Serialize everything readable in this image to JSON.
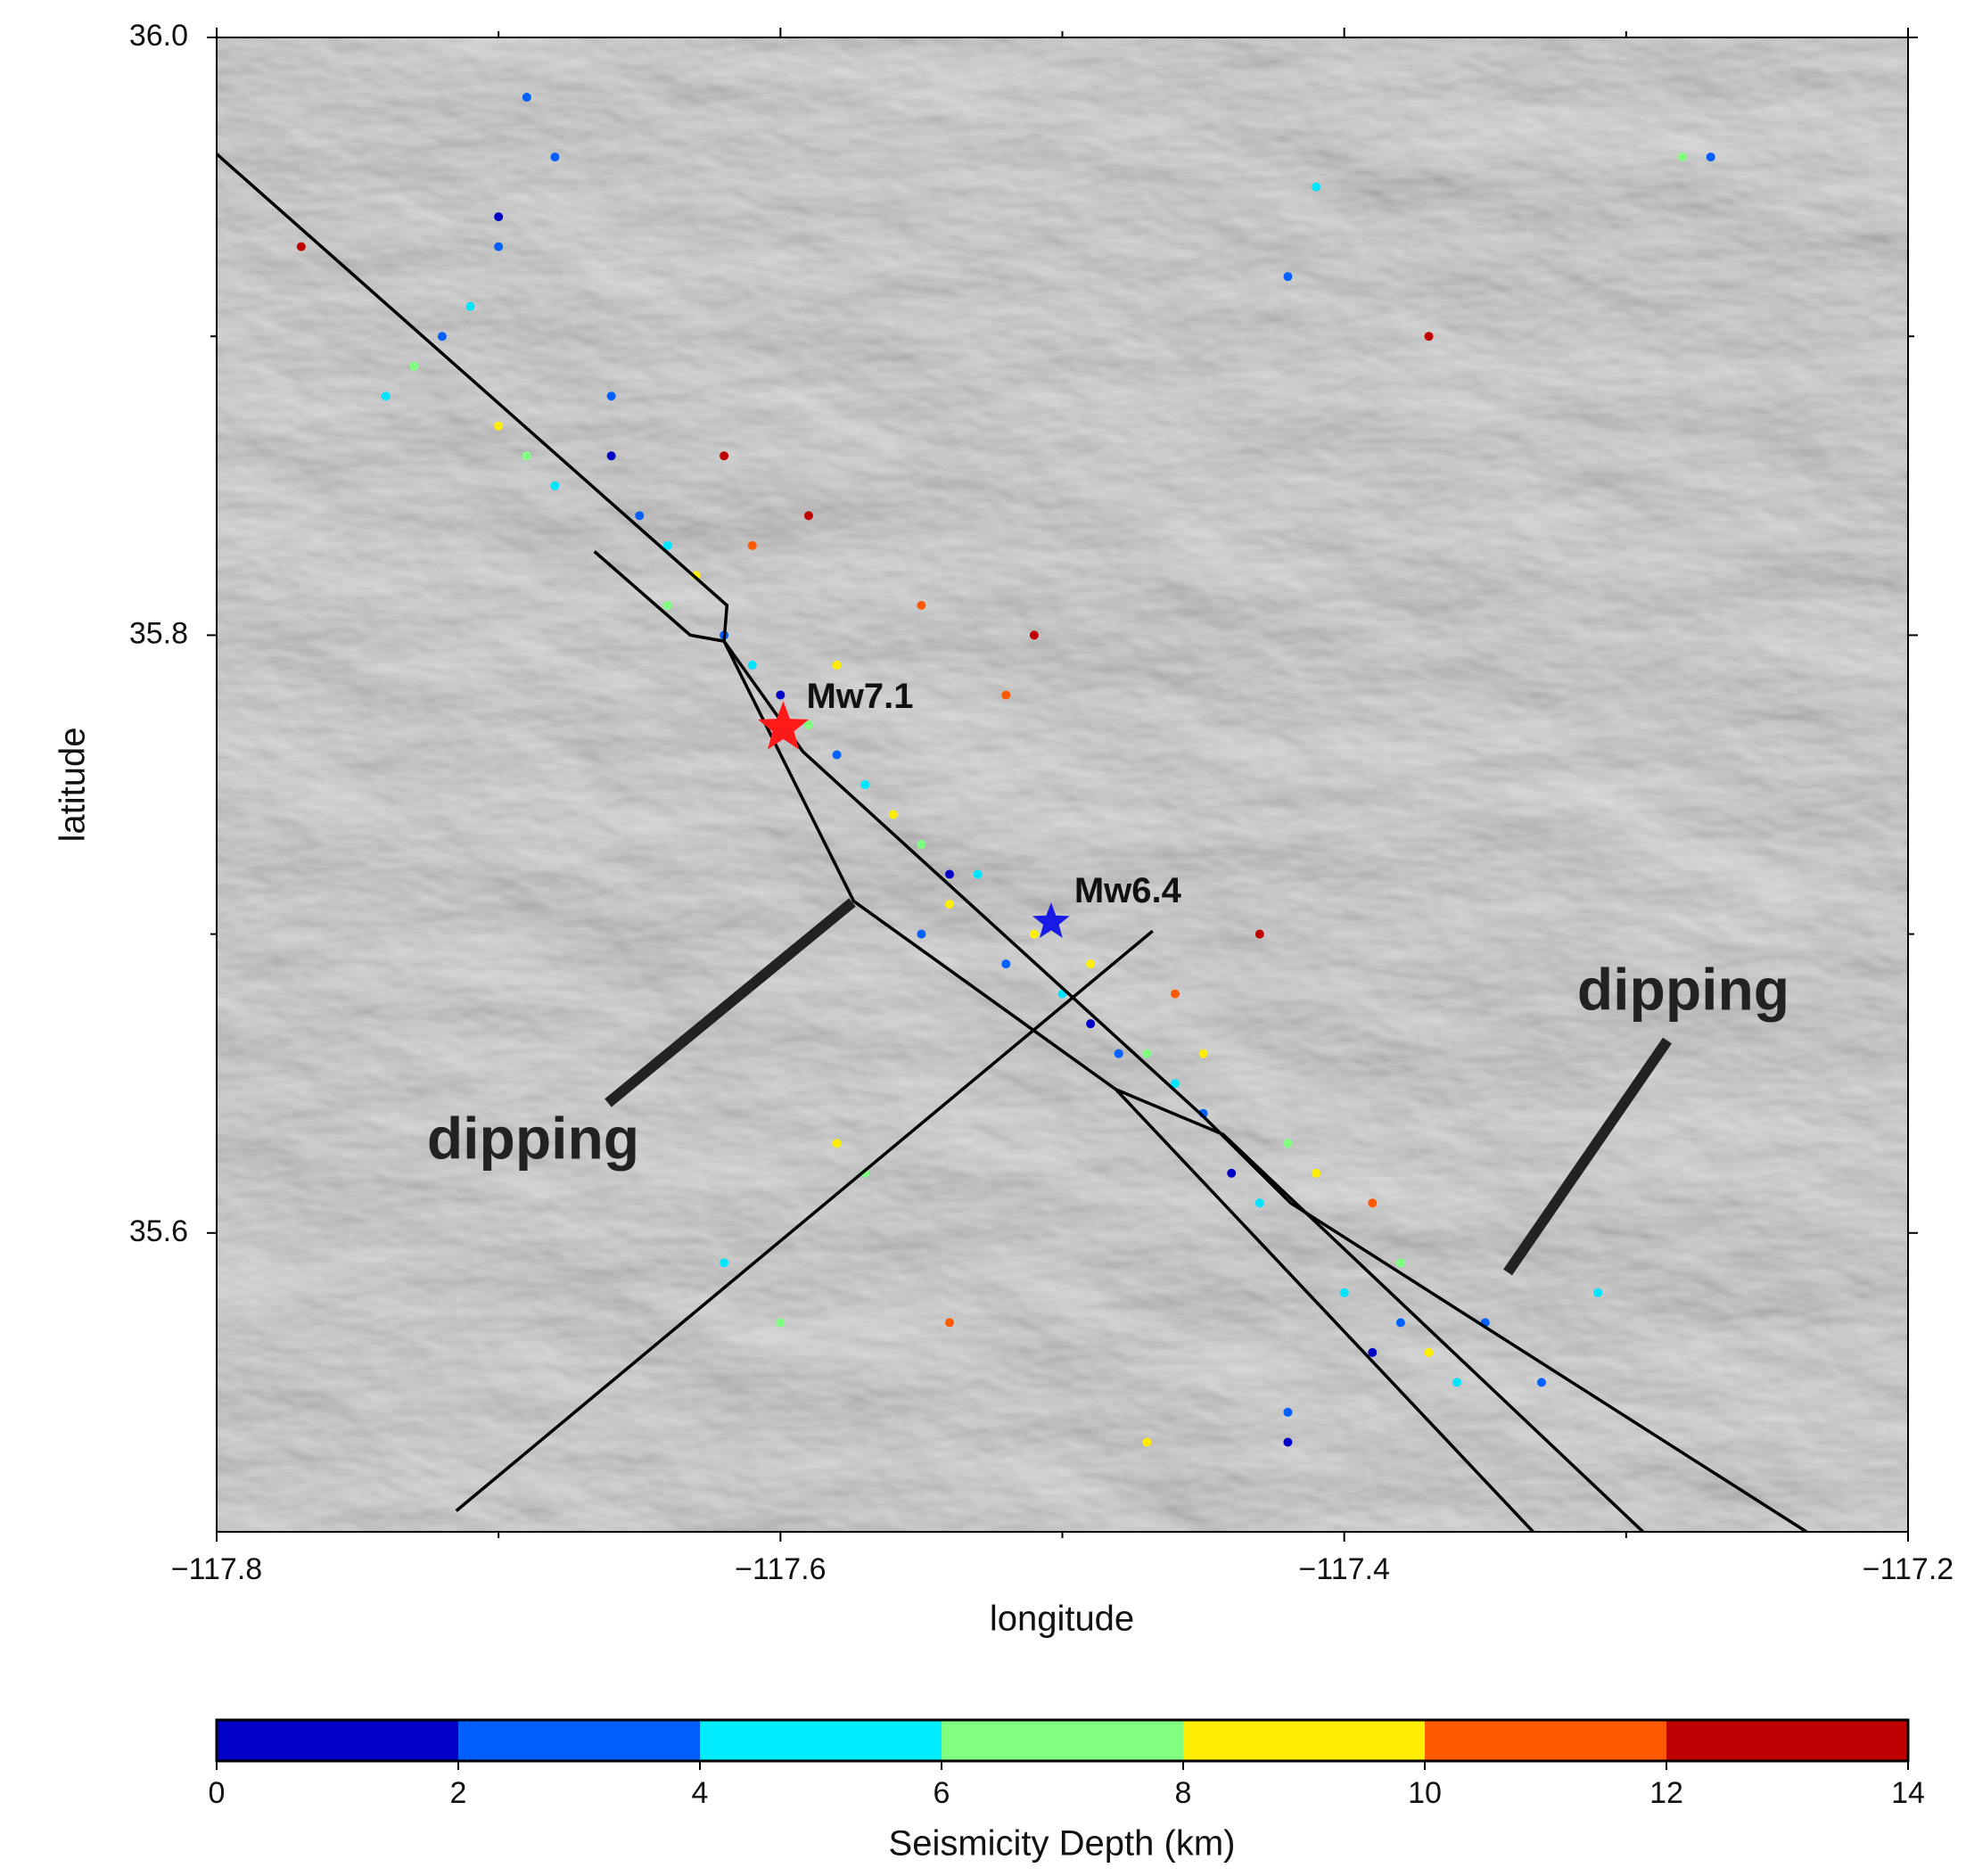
{
  "chart_data": {
    "type": "scatter",
    "xlabel": "longitude",
    "ylabel": "latitude",
    "xlim": [
      -117.8,
      -117.2
    ],
    "ylim": [
      35.5,
      36.0
    ],
    "xticks": [
      {
        "value": -117.8,
        "label": "−117.8"
      },
      {
        "value": -117.6,
        "label": "−117.6"
      },
      {
        "value": -117.4,
        "label": "−117.4"
      },
      {
        "value": -117.2,
        "label": "−117.2"
      }
    ],
    "yticks": [
      35.6,
      35.8,
      {
        "value": 36.0,
        "label": "36.0"
      }
    ],
    "xminorticks": [
      -117.7,
      -117.5,
      -117.3
    ],
    "yminorticks": [
      35.7,
      35.9
    ],
    "series": [
      {
        "color": "#0000c8",
        "x": [
          -117.7,
          -117.66,
          -117.6,
          -117.54,
          -117.49,
          -117.44,
          -117.39,
          -117.42
        ],
        "values": [
          35.94,
          35.86,
          35.78,
          35.72,
          35.67,
          35.62,
          35.56,
          35.53
        ]
      },
      {
        "color": "#0060ff",
        "x": [
          -117.72,
          -117.7,
          -117.68,
          -117.66,
          -117.65,
          -117.62,
          -117.58,
          -117.55,
          -117.52,
          -117.48,
          -117.45,
          -117.42,
          -117.38,
          -117.35,
          -117.33,
          -117.27,
          -117.42,
          -117.69
        ],
        "values": [
          35.9,
          35.93,
          35.96,
          35.88,
          35.84,
          35.8,
          35.76,
          35.7,
          35.69,
          35.66,
          35.64,
          35.54,
          35.57,
          35.57,
          35.55,
          35.96,
          35.92,
          35.98
        ]
      },
      {
        "color": "#00e5ff",
        "x": [
          -117.74,
          -117.71,
          -117.68,
          -117.64,
          -117.61,
          -117.57,
          -117.53,
          -117.5,
          -117.46,
          -117.43,
          -117.4,
          -117.36,
          -117.31,
          -117.62,
          -117.41
        ],
        "values": [
          35.88,
          35.91,
          35.85,
          35.83,
          35.79,
          35.75,
          35.72,
          35.68,
          35.65,
          35.61,
          35.58,
          35.55,
          35.58,
          35.59,
          35.95
        ]
      },
      {
        "color": "#80ff80",
        "x": [
          -117.73,
          -117.69,
          -117.64,
          -117.59,
          -117.55,
          -117.51,
          -117.47,
          -117.42,
          -117.38,
          -117.57,
          -117.6,
          -117.28
        ],
        "values": [
          35.89,
          35.86,
          35.81,
          35.77,
          35.73,
          35.7,
          35.66,
          35.63,
          35.59,
          35.62,
          35.57,
          35.96
        ]
      },
      {
        "color": "#ffee00",
        "x": [
          -117.7,
          -117.63,
          -117.58,
          -117.54,
          -117.51,
          -117.49,
          -117.45,
          -117.41,
          -117.37,
          -117.58,
          -117.47,
          -117.56
        ],
        "values": [
          35.87,
          35.82,
          35.79,
          35.71,
          35.7,
          35.69,
          35.66,
          35.62,
          35.56,
          35.63,
          35.53,
          35.74
        ]
      },
      {
        "color": "#ff5a00",
        "x": [
          -117.61,
          -117.55,
          -117.52,
          -117.46,
          -117.39,
          -117.54
        ],
        "values": [
          35.83,
          35.81,
          35.78,
          35.68,
          35.61,
          35.57
        ]
      },
      {
        "color": "#c00000",
        "x": [
          -117.59,
          -117.62,
          -117.51,
          -117.43,
          -117.37,
          -117.77
        ],
        "values": [
          35.84,
          35.86,
          35.8,
          35.7,
          35.9,
          35.93
        ]
      }
    ],
    "faults": [
      {
        "x": [
          -117.8,
          -117.619,
          -117.62,
          -117.592,
          -117.45,
          -117.419,
          -117.236
        ],
        "y": [
          35.961,
          35.81,
          35.798,
          35.761,
          35.639,
          35.61,
          35.5
        ]
      },
      {
        "x": [
          -117.666,
          -117.632,
          -117.62,
          -117.574,
          -117.481,
          -117.443,
          -117.294
        ],
        "y": [
          35.828,
          35.8,
          35.798,
          35.711,
          35.648,
          35.633,
          35.5
        ]
      },
      {
        "x": [
          -117.481,
          -117.333
        ],
        "y": [
          35.648,
          35.5
        ]
      },
      {
        "x": [
          -117.715,
          -117.468
        ],
        "y": [
          35.507,
          35.701
        ]
      }
    ],
    "epicenters": [
      {
        "label": "Mw7.1",
        "x": -117.599,
        "y": 35.769,
        "color": "#ff1a1a"
      },
      {
        "label": "Mw6.4",
        "x": -117.504,
        "y": 35.704,
        "color": "#1a1ae6"
      }
    ],
    "annotations": [
      "dipping",
      "dipping"
    ],
    "colorbar": {
      "label": "Seismicity Depth (km)",
      "ticks": [
        0,
        2,
        4,
        6,
        8,
        10,
        12,
        14
      ],
      "colors": [
        "#0000c8",
        "#0060ff",
        "#00eeff",
        "#80ff80",
        "#ffee00",
        "#ff5a00",
        "#c00000"
      ]
    }
  }
}
